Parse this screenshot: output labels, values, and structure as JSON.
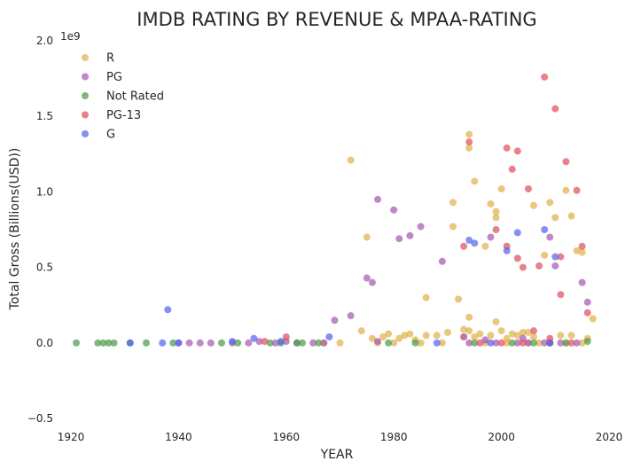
{
  "chart_data": {
    "type": "scatter",
    "title": "IMDB RATING BY REVENUE & MPAA-RATING",
    "xlabel": "YEAR",
    "ylabel": "Total Gross (Billions(USD))",
    "offset_text": "1e9",
    "xlim": [
      1920,
      2020
    ],
    "ylim": [
      -0.5,
      2.0
    ],
    "x_ticks": [
      "1920",
      "1940",
      "1960",
      "1980",
      "2000",
      "2020"
    ],
    "x_tick_values": [
      1920,
      1940,
      1960,
      1980,
      2000,
      2020
    ],
    "y_ticks": [
      "−0.5",
      "0.0",
      "0.5",
      "1.0",
      "1.5",
      "2.0"
    ],
    "y_tick_values": [
      -0.5,
      0.0,
      0.5,
      1.0,
      1.5,
      2.0
    ],
    "grid": false,
    "legend_position": "top-left",
    "series": [
      {
        "name": "R",
        "color": "#e0b24a",
        "points": [
          [
            1972,
            1.21
          ],
          [
            1974,
            0.08
          ],
          [
            1975,
            0.7
          ],
          [
            1976,
            0.03
          ],
          [
            1978,
            0.04
          ],
          [
            1979,
            0.06
          ],
          [
            1981,
            0.03
          ],
          [
            1982,
            0.05
          ],
          [
            1983,
            0.06
          ],
          [
            1984,
            0.02
          ],
          [
            1986,
            0.3
          ],
          [
            1986,
            0.05
          ],
          [
            1988,
            0.05
          ],
          [
            1990,
            0.07
          ],
          [
            1991,
            0.77
          ],
          [
            1991,
            0.93
          ],
          [
            1992,
            0.29
          ],
          [
            1993,
            0.09
          ],
          [
            1993,
            0.04
          ],
          [
            1994,
            1.38
          ],
          [
            1994,
            1.29
          ],
          [
            1994,
            0.17
          ],
          [
            1994,
            0.08
          ],
          [
            1995,
            1.07
          ],
          [
            1995,
            0.04
          ],
          [
            1996,
            0.06
          ],
          [
            1997,
            0.64
          ],
          [
            1998,
            0.92
          ],
          [
            1998,
            0.05
          ],
          [
            1999,
            0.87
          ],
          [
            1999,
            0.83
          ],
          [
            1999,
            0.14
          ],
          [
            2000,
            1.02
          ],
          [
            2000,
            0.08
          ],
          [
            2001,
            0.03
          ],
          [
            2002,
            0.06
          ],
          [
            2003,
            0.05
          ],
          [
            2004,
            0.07
          ],
          [
            2005,
            0.07
          ],
          [
            2006,
            0.91
          ],
          [
            2006,
            0.04
          ],
          [
            2008,
            0.58
          ],
          [
            2009,
            0.93
          ],
          [
            2010,
            0.83
          ],
          [
            2011,
            0.05
          ],
          [
            2012,
            1.01
          ],
          [
            2013,
            0.84
          ],
          [
            2013,
            0.05
          ],
          [
            2014,
            0.61
          ],
          [
            2015,
            0.6
          ],
          [
            2016,
            0.03
          ],
          [
            2017,
            0.16
          ],
          [
            1967,
            0.0
          ],
          [
            1970,
            0.0
          ],
          [
            1977,
            0.0
          ],
          [
            1980,
            0.0
          ],
          [
            1985,
            0.0
          ],
          [
            1989,
            0.0
          ],
          [
            1997,
            0.0
          ],
          [
            2001,
            0.0
          ],
          [
            2005,
            0.0
          ],
          [
            2007,
            0.0
          ],
          [
            2012,
            0.0
          ],
          [
            2015,
            0.0
          ]
        ]
      },
      {
        "name": "PG",
        "color": "#a65bb3",
        "points": [
          [
            1940,
            0.0
          ],
          [
            1942,
            0.0
          ],
          [
            1944,
            0.0
          ],
          [
            1946,
            0.0
          ],
          [
            1950,
            0.0
          ],
          [
            1953,
            0.0
          ],
          [
            1955,
            0.01
          ],
          [
            1958,
            0.0
          ],
          [
            1960,
            0.01
          ],
          [
            1962,
            0.0
          ],
          [
            1965,
            0.0
          ],
          [
            1967,
            0.0
          ],
          [
            1969,
            0.15
          ],
          [
            1972,
            0.18
          ],
          [
            1975,
            0.43
          ],
          [
            1976,
            0.4
          ],
          [
            1977,
            0.95
          ],
          [
            1977,
            0.01
          ],
          [
            1980,
            0.88
          ],
          [
            1981,
            0.69
          ],
          [
            1983,
            0.71
          ],
          [
            1985,
            0.77
          ],
          [
            1989,
            0.54
          ],
          [
            1993,
            0.04
          ],
          [
            1997,
            0.02
          ],
          [
            1998,
            0.7
          ],
          [
            2003,
            0.0
          ],
          [
            2005,
            0.0
          ],
          [
            2008,
            0.0
          ],
          [
            2009,
            0.7
          ],
          [
            2010,
            0.51
          ],
          [
            2015,
            0.4
          ],
          [
            2016,
            0.27
          ],
          [
            2004,
            0.03
          ],
          [
            1999,
            0.0
          ],
          [
            1994,
            0.0
          ],
          [
            2011,
            0.0
          ],
          [
            2014,
            0.0
          ]
        ]
      },
      {
        "name": "Not Rated",
        "color": "#4c9c4c",
        "points": [
          [
            1921,
            0.0
          ],
          [
            1925,
            0.0
          ],
          [
            1926,
            0.0
          ],
          [
            1927,
            0.0
          ],
          [
            1928,
            0.0
          ],
          [
            1931,
            0.0
          ],
          [
            1934,
            0.0
          ],
          [
            1939,
            0.0
          ],
          [
            1948,
            0.0
          ],
          [
            1951,
            0.0
          ],
          [
            1957,
            0.0
          ],
          [
            1959,
            0.0
          ],
          [
            1962,
            0.0
          ],
          [
            1963,
            0.0
          ],
          [
            1966,
            0.0
          ],
          [
            1979,
            0.0
          ],
          [
            1984,
            0.0
          ],
          [
            1995,
            0.0
          ],
          [
            2002,
            0.0
          ],
          [
            2006,
            0.0
          ],
          [
            2009,
            0.0
          ],
          [
            2012,
            0.0
          ],
          [
            2016,
            0.01
          ]
        ]
      },
      {
        "name": "PG-13",
        "color": "#e05060",
        "points": [
          [
            1956,
            0.01
          ],
          [
            1960,
            0.04
          ],
          [
            1993,
            0.64
          ],
          [
            1994,
            1.33
          ],
          [
            1999,
            0.75
          ],
          [
            2001,
            1.29
          ],
          [
            2001,
            0.64
          ],
          [
            2002,
            1.15
          ],
          [
            2003,
            1.27
          ],
          [
            2003,
            0.56
          ],
          [
            2004,
            0.5
          ],
          [
            2005,
            1.02
          ],
          [
            2006,
            0.08
          ],
          [
            2007,
            0.51
          ],
          [
            2008,
            1.76
          ],
          [
            2009,
            0.03
          ],
          [
            2010,
            1.55
          ],
          [
            2011,
            0.57
          ],
          [
            2011,
            0.32
          ],
          [
            2012,
            1.2
          ],
          [
            2014,
            1.01
          ],
          [
            2015,
            0.64
          ],
          [
            2016,
            0.2
          ],
          [
            1996,
            0.0
          ],
          [
            2000,
            0.0
          ],
          [
            2004,
            0.0
          ],
          [
            2009,
            0.0
          ],
          [
            2013,
            0.0
          ]
        ]
      },
      {
        "name": "G",
        "color": "#5566ee",
        "points": [
          [
            1931,
            0.0
          ],
          [
            1937,
            0.0
          ],
          [
            1938,
            0.22
          ],
          [
            1940,
            0.0
          ],
          [
            1950,
            0.01
          ],
          [
            1954,
            0.03
          ],
          [
            1959,
            0.01
          ],
          [
            1968,
            0.04
          ],
          [
            1988,
            0.0
          ],
          [
            1994,
            0.68
          ],
          [
            1995,
            0.66
          ],
          [
            2001,
            0.61
          ],
          [
            2003,
            0.73
          ],
          [
            2008,
            0.75
          ],
          [
            2010,
            0.57
          ],
          [
            2009,
            0.0
          ],
          [
            1998,
            0.0
          ]
        ]
      }
    ]
  }
}
